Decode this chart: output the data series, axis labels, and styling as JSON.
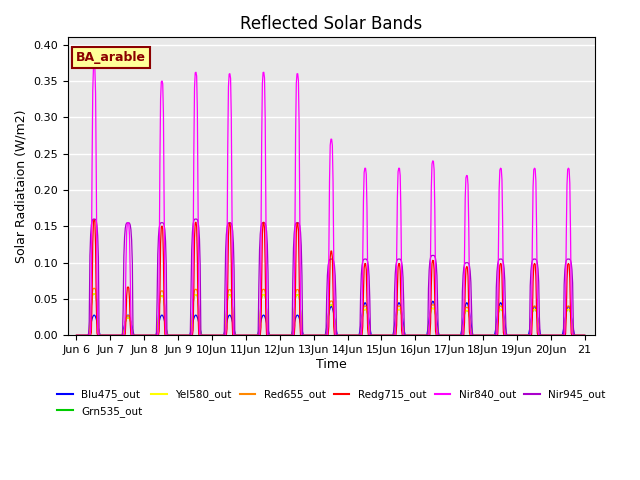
{
  "title": "Reflected Solar Bands",
  "xlabel": "Time",
  "ylabel": "Solar Radiataion (W/m2)",
  "ylim": [
    0.0,
    0.41
  ],
  "background_color": "#e8e8e8",
  "annotation_text": "BA_arable",
  "annotation_bg": "#ffff99",
  "annotation_border": "#8B0000",
  "bands": [
    {
      "name": "Blu475_out",
      "color": "#0000FF",
      "ratio": 0.08
    },
    {
      "name": "Grn535_out",
      "color": "#00CC00",
      "ratio": 0.155
    },
    {
      "name": "Yel580_out",
      "color": "#FFFF00",
      "ratio": 0.155
    },
    {
      "name": "Red655_out",
      "color": "#FF8800",
      "ratio": 0.175
    },
    {
      "name": "Redg715_out",
      "color": "#FF0000",
      "ratio": 0.43
    },
    {
      "name": "Nir840_out",
      "color": "#FF00FF",
      "ratio": 1.0
    },
    {
      "name": "Nir945_out",
      "color": "#AA00CC",
      "ratio": 0.43
    }
  ],
  "start_day": 6,
  "end_day": 21,
  "dt_minutes": 30,
  "nir840_peaks": [
    0.37,
    0.155,
    0.35,
    0.362,
    0.36,
    0.362,
    0.36,
    0.27,
    0.23,
    0.23,
    0.24,
    0.22,
    0.23,
    0.23,
    0.23
  ],
  "blu475_peaks": [
    0.028,
    0.028,
    0.028,
    0.028,
    0.028,
    0.028,
    0.028,
    0.04,
    0.045,
    0.045,
    0.047,
    0.045,
    0.045,
    0.04,
    0.04
  ],
  "nir945_peaks": [
    0.16,
    0.155,
    0.155,
    0.16,
    0.155,
    0.155,
    0.155,
    0.105,
    0.105,
    0.105,
    0.11,
    0.1,
    0.105,
    0.105,
    0.105
  ],
  "xlim_start": 5.75,
  "xlim_end": 21.3,
  "tick_days": [
    6,
    7,
    8,
    9,
    10,
    11,
    12,
    13,
    14,
    15,
    16,
    17,
    18,
    19,
    20,
    21
  ],
  "tick_labels": [
    "Jun 6",
    "Jun 7",
    "Jun 8",
    "Jun 9",
    "10Jun",
    "11Jun",
    "12Jun",
    "13Jun",
    "14Jun",
    "15Jun",
    "16Jun",
    "17Jun",
    "18Jun",
    "19Jun",
    "20Jun",
    "21"
  ]
}
